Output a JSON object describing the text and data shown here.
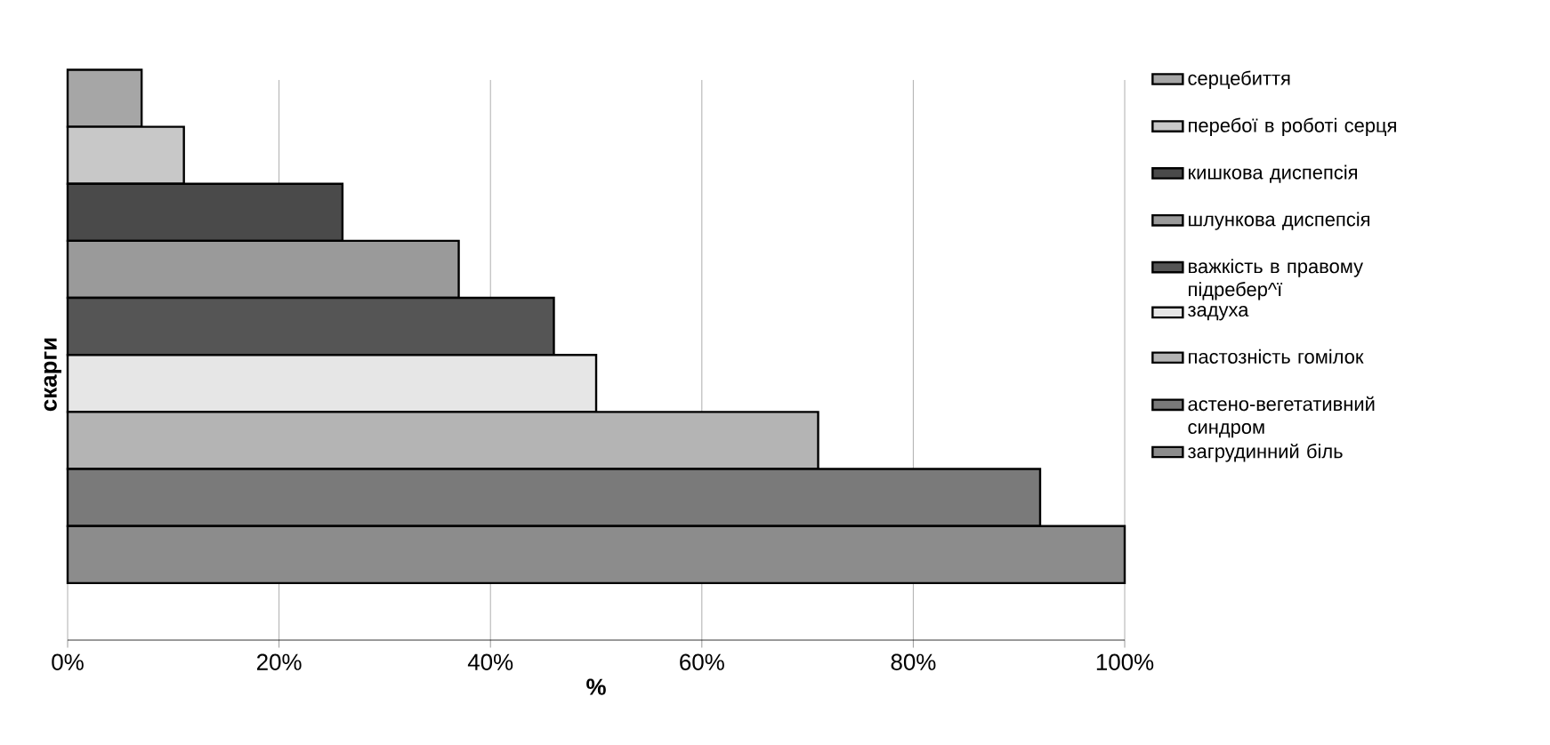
{
  "chart_data": {
    "type": "bar",
    "orientation": "horizontal",
    "xlabel": "%",
    "ylabel": "скарги",
    "categories": [
      null
    ],
    "series": [
      {
        "name": "серцебиття",
        "color": "#a6a6a6",
        "values": [
          7
        ]
      },
      {
        "name": "перебої в роботі серця",
        "color": "#c8c8c8",
        "values": [
          11
        ]
      },
      {
        "name": "кишкова диспепсія",
        "color": "#4a4a4a",
        "values": [
          26
        ]
      },
      {
        "name": "шлункова диспепсія",
        "color": "#9a9a9a",
        "values": [
          37
        ]
      },
      {
        "name": "важкість в правому підребер^ї",
        "color": "#555555",
        "values": [
          46
        ]
      },
      {
        "name": "задуха",
        "color": "#e6e6e6",
        "values": [
          50
        ]
      },
      {
        "name": "пастозність гомілок",
        "color": "#b4b4b4",
        "values": [
          71
        ]
      },
      {
        "name": "астено-вегетативний синдром",
        "color": "#7a7a7a",
        "values": [
          92
        ]
      },
      {
        "name": "загрудинний біль",
        "color": "#8c8c8c",
        "values": [
          100
        ]
      }
    ],
    "xlim": [
      0,
      100
    ],
    "xticks": [
      {
        "value": 0,
        "label": "0%"
      },
      {
        "value": 20,
        "label": "20%"
      },
      {
        "value": 40,
        "label": "40%"
      },
      {
        "value": 60,
        "label": "60%"
      },
      {
        "value": 80,
        "label": "80%"
      },
      {
        "value": 100,
        "label": "100%"
      }
    ],
    "grid": "x",
    "legend": "right",
    "tick_labels": "x"
  }
}
